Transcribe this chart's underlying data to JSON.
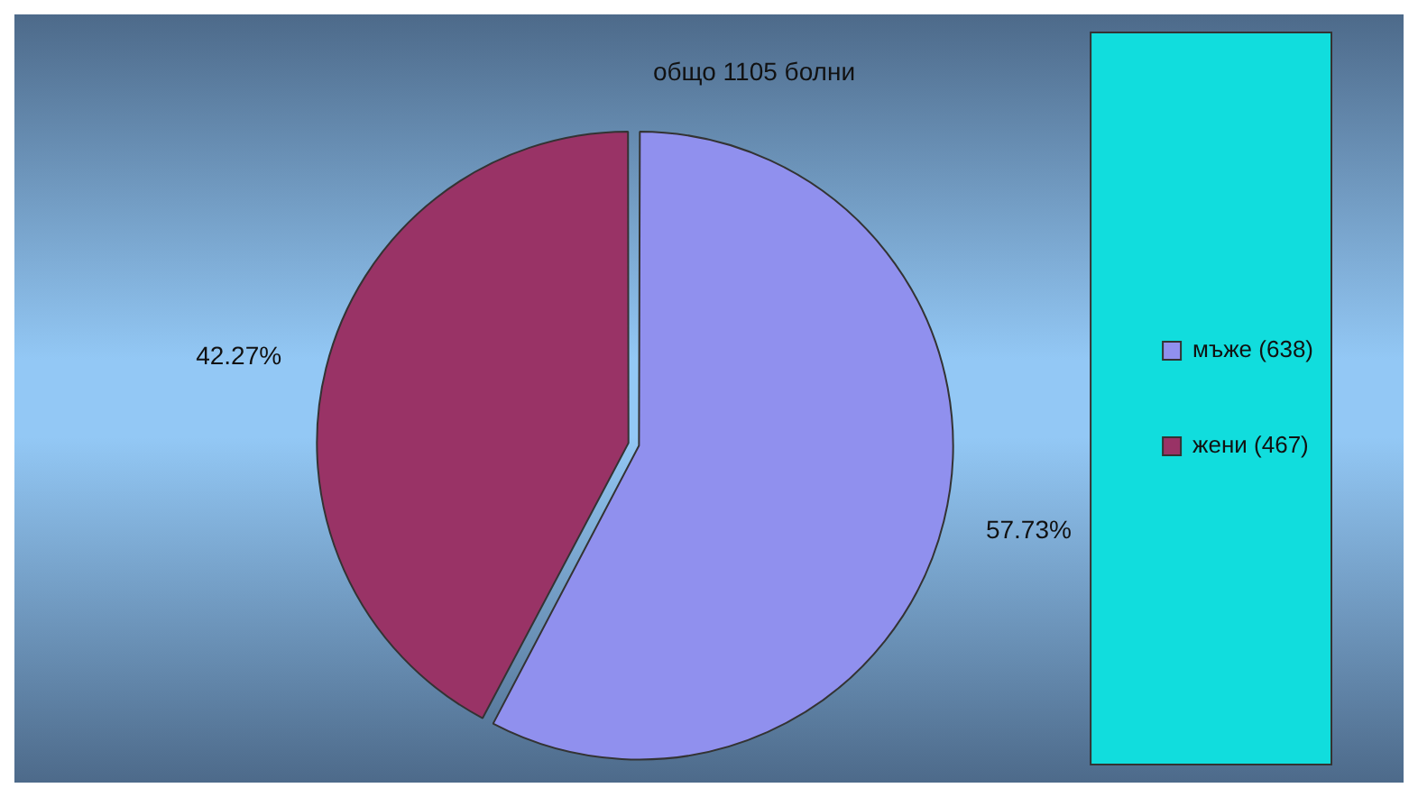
{
  "chart_data": {
    "type": "pie",
    "title": "общо 1105 болни",
    "categories": [
      "мъже (638)",
      "жени (467)"
    ],
    "values": [
      57.73,
      42.27
    ],
    "value_labels": [
      "57.73%",
      "42.27%"
    ],
    "colors": [
      "#9090ee",
      "#993366"
    ],
    "legend": "right"
  }
}
